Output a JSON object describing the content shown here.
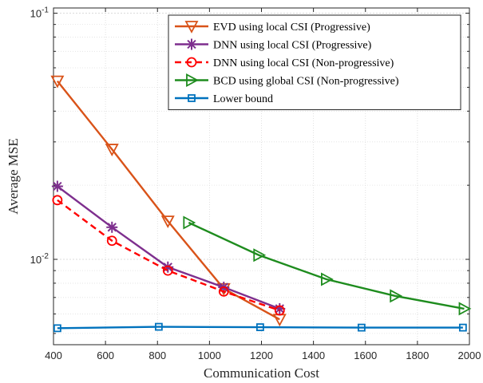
{
  "chart_data": {
    "type": "line",
    "title": "",
    "xlabel": "Communication Cost",
    "ylabel": "Average MSE",
    "xlim": [
      400,
      2000
    ],
    "ylim": [
      0.0045,
      0.105
    ],
    "yscale": "log",
    "grid": true,
    "legend_position": "top-right",
    "x_ticks": [
      400,
      600,
      800,
      1000,
      1200,
      1400,
      1600,
      1800,
      2000
    ],
    "x_tick_labels": [
      "400",
      "600",
      "800",
      "1000",
      "1200",
      "1400",
      "1600",
      "1800",
      "2000"
    ],
    "y_major_ticks": [
      0.01,
      0.1
    ],
    "y_tick_labels": [
      {
        "value": 0.01,
        "base": "10",
        "exp": "-2"
      },
      {
        "value": 0.1,
        "base": "10",
        "exp": "-1"
      }
    ],
    "series": [
      {
        "name": "EVD using local CSI (Progressive)",
        "color": "#D95319",
        "marker": "triangle-down",
        "dash": "solid",
        "x": [
          415,
          625,
          840,
          1055,
          1270
        ],
        "y": [
          0.053,
          0.028,
          0.0143,
          0.0076,
          0.0057
        ]
      },
      {
        "name": "DNN using local CSI (Progressive)",
        "color": "#7E2F8E",
        "marker": "asterisk",
        "dash": "solid",
        "x": [
          415,
          625,
          840,
          1055,
          1270
        ],
        "y": [
          0.0198,
          0.0135,
          0.0093,
          0.0077,
          0.0063
        ]
      },
      {
        "name": "DNN using local CSI (Non-progressive)",
        "color": "#FF0000",
        "marker": "circle",
        "dash": "dashed",
        "x": [
          415,
          625,
          840,
          1055,
          1270
        ],
        "y": [
          0.0174,
          0.0119,
          0.009,
          0.0074,
          0.0062
        ]
      },
      {
        "name": "BCD using global CSI (Non-progressive)",
        "color": "#1E8C1E",
        "marker": "triangle-right",
        "dash": "solid",
        "x": [
          920,
          1190,
          1450,
          1715,
          1980
        ],
        "y": [
          0.0141,
          0.0104,
          0.0083,
          0.0071,
          0.0063
        ]
      },
      {
        "name": "Lower bound",
        "color": "#0072BD",
        "marker": "square",
        "dash": "solid",
        "x": [
          415,
          805,
          1195,
          1585,
          1975
        ],
        "y": [
          0.00525,
          0.00532,
          0.0053,
          0.00528,
          0.00528
        ]
      }
    ]
  }
}
